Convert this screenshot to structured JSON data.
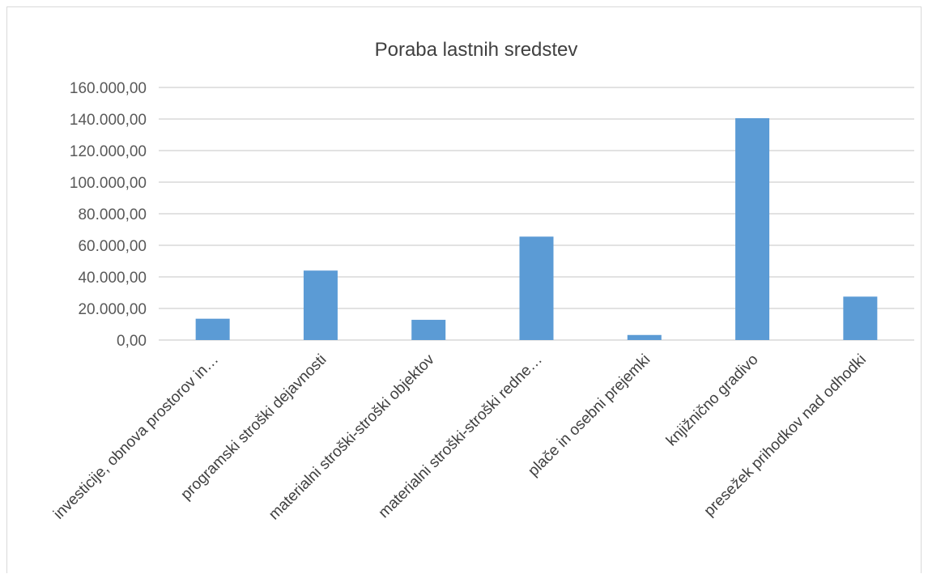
{
  "chart_data": {
    "type": "bar",
    "title": "Poraba lastnih sredstev",
    "xlabel": "",
    "ylabel": "",
    "ylim": [
      0,
      160000
    ],
    "y_tick_values": [
      0,
      20000,
      40000,
      60000,
      80000,
      100000,
      120000,
      140000,
      160000
    ],
    "y_tick_labels": [
      "0,00",
      "20.000,00",
      "40.000,00",
      "60.000,00",
      "80.000,00",
      "100.000,00",
      "120.000,00",
      "140.000,00",
      "160.000,00"
    ],
    "categories": [
      "investicije, obnova prostorov in…",
      "programski stroški dejavnosti",
      "materialni stroški-stroški objektov",
      "materialni stroški-stroški redne…",
      "plače in osebni prejemki",
      "knjižnično gradivo",
      "presežek prihodkov nad odhodki"
    ],
    "values": [
      13500,
      44000,
      12800,
      65500,
      3200,
      140500,
      27500
    ],
    "grid": true,
    "legend": "none",
    "bar_color": "#5b9bd5"
  }
}
